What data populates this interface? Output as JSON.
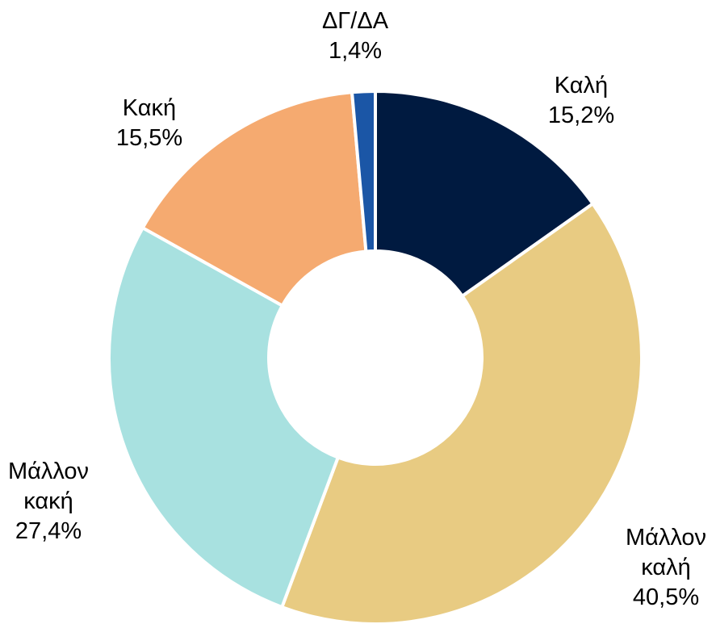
{
  "chart_data": {
    "type": "donut",
    "categories": [
      "Καλή",
      "Μάλλον καλή",
      "Μάλλον κακή",
      "Κακή",
      "ΔΓ/ΔΑ"
    ],
    "values": [
      15.2,
      40.5,
      27.4,
      15.5,
      1.4
    ],
    "value_labels": [
      "15,2%",
      "40,5%",
      "27,4%",
      "15,5%",
      "1,4%"
    ],
    "colors": [
      "#001a40",
      "#e8cb82",
      "#a8e1e0",
      "#f5aa70",
      "#1b56a6"
    ]
  }
}
